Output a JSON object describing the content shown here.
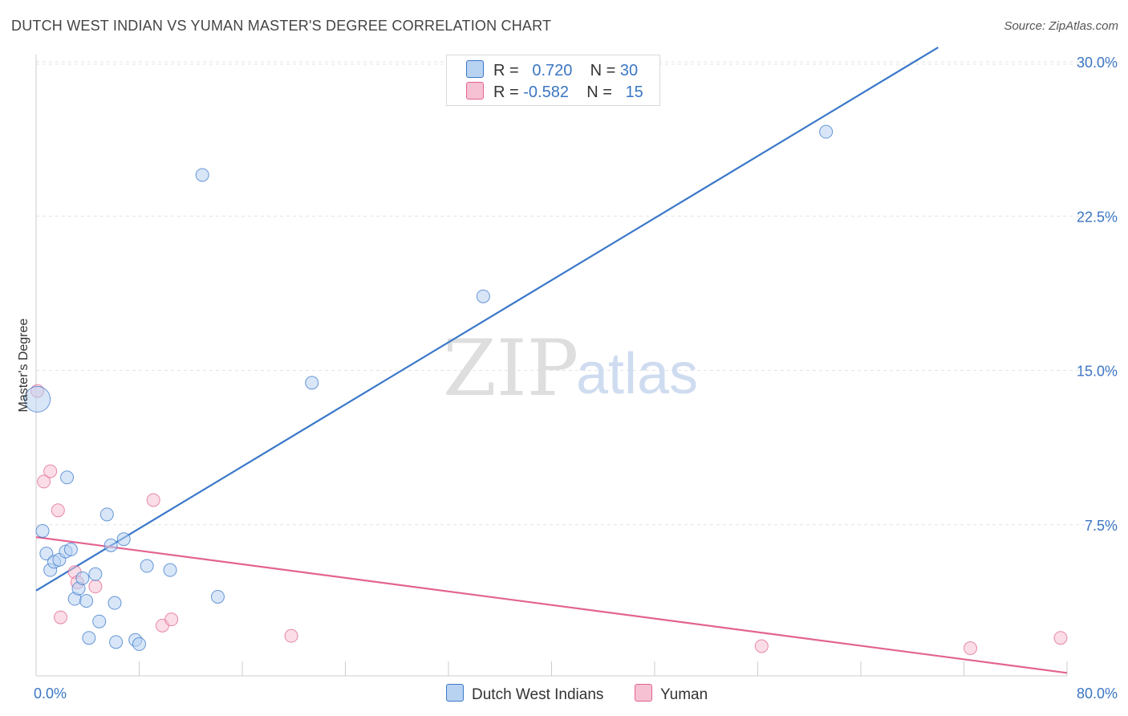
{
  "title": "DUTCH WEST INDIAN VS YUMAN MASTER'S DEGREE CORRELATION CHART",
  "source": "Source: ZipAtlas.com",
  "colors": {
    "blue": "#3a78c9",
    "blue_fill": "#b8d2f2",
    "pink": "#e26491",
    "pink_fill": "#f6c1d2",
    "tick": "#3b76c4"
  },
  "legend": {
    "r_label": "R =",
    "n_label": "N =",
    "series": [
      {
        "r": "0.720",
        "n": "30"
      },
      {
        "r": "-0.582",
        "n": "15"
      }
    ]
  },
  "bottom_legend": [
    "Dutch West Indians",
    "Yuman"
  ],
  "watermark": {
    "zip": "ZIP",
    "atlas": "atlas"
  },
  "chart_data": {
    "type": "scatter",
    "title": "DUTCH WEST INDIAN VS YUMAN MASTER'S DEGREE CORRELATION CHART",
    "xlabel": "",
    "ylabel": "Master's Degree",
    "xlim": [
      0,
      80
    ],
    "ylim": [
      0,
      30
    ],
    "x_tick_labels": [
      {
        "value": 0,
        "label": "0.0%"
      },
      {
        "value": 80,
        "label": "80.0%"
      }
    ],
    "y_tick_labels": [
      {
        "value": 7.5,
        "label": "7.5%"
      },
      {
        "value": 15,
        "label": "15.0%"
      },
      {
        "value": 22.5,
        "label": "22.5%"
      },
      {
        "value": 30,
        "label": "30.0%"
      }
    ],
    "grid": true,
    "series": [
      {
        "name": "Dutch West Indians",
        "r": 0.72,
        "n": 30,
        "trend": {
          "x": [
            0,
            70
          ],
          "y": [
            4.3,
            30.7
          ]
        },
        "points": [
          {
            "x": 0.1,
            "y": 13.6,
            "big": true
          },
          {
            "x": 0.5,
            "y": 7.2
          },
          {
            "x": 0.8,
            "y": 6.1
          },
          {
            "x": 1.1,
            "y": 5.3
          },
          {
            "x": 1.4,
            "y": 5.7
          },
          {
            "x": 1.8,
            "y": 5.8
          },
          {
            "x": 2.3,
            "y": 6.2
          },
          {
            "x": 2.4,
            "y": 9.8
          },
          {
            "x": 2.7,
            "y": 6.3
          },
          {
            "x": 3.0,
            "y": 3.9
          },
          {
            "x": 3.3,
            "y": 4.4
          },
          {
            "x": 3.6,
            "y": 4.9
          },
          {
            "x": 3.9,
            "y": 3.8
          },
          {
            "x": 4.1,
            "y": 2.0
          },
          {
            "x": 4.6,
            "y": 5.1
          },
          {
            "x": 4.9,
            "y": 2.8
          },
          {
            "x": 5.5,
            "y": 8.0
          },
          {
            "x": 5.8,
            "y": 6.5
          },
          {
            "x": 6.1,
            "y": 3.7
          },
          {
            "x": 6.2,
            "y": 1.8
          },
          {
            "x": 6.8,
            "y": 6.8
          },
          {
            "x": 7.7,
            "y": 1.9
          },
          {
            "x": 8.0,
            "y": 1.7
          },
          {
            "x": 8.6,
            "y": 5.5
          },
          {
            "x": 10.4,
            "y": 5.3
          },
          {
            "x": 12.9,
            "y": 24.5
          },
          {
            "x": 14.1,
            "y": 4.0
          },
          {
            "x": 21.4,
            "y": 14.4
          },
          {
            "x": 34.7,
            "y": 18.6
          },
          {
            "x": 61.3,
            "y": 26.6
          }
        ]
      },
      {
        "name": "Yuman",
        "r": -0.582,
        "n": 15,
        "trend": {
          "x": [
            0,
            80
          ],
          "y": [
            6.9,
            0.3
          ]
        },
        "points": [
          {
            "x": 0.1,
            "y": 14.0
          },
          {
            "x": 0.6,
            "y": 9.6
          },
          {
            "x": 1.1,
            "y": 10.1
          },
          {
            "x": 1.7,
            "y": 8.2
          },
          {
            "x": 1.9,
            "y": 3.0
          },
          {
            "x": 3.0,
            "y": 5.2
          },
          {
            "x": 3.2,
            "y": 4.7
          },
          {
            "x": 4.6,
            "y": 4.5
          },
          {
            "x": 9.1,
            "y": 8.7
          },
          {
            "x": 9.8,
            "y": 2.6
          },
          {
            "x": 10.5,
            "y": 2.9
          },
          {
            "x": 19.8,
            "y": 2.1
          },
          {
            "x": 56.3,
            "y": 1.6
          },
          {
            "x": 72.5,
            "y": 1.5
          },
          {
            "x": 79.5,
            "y": 2.0
          }
        ]
      }
    ]
  }
}
